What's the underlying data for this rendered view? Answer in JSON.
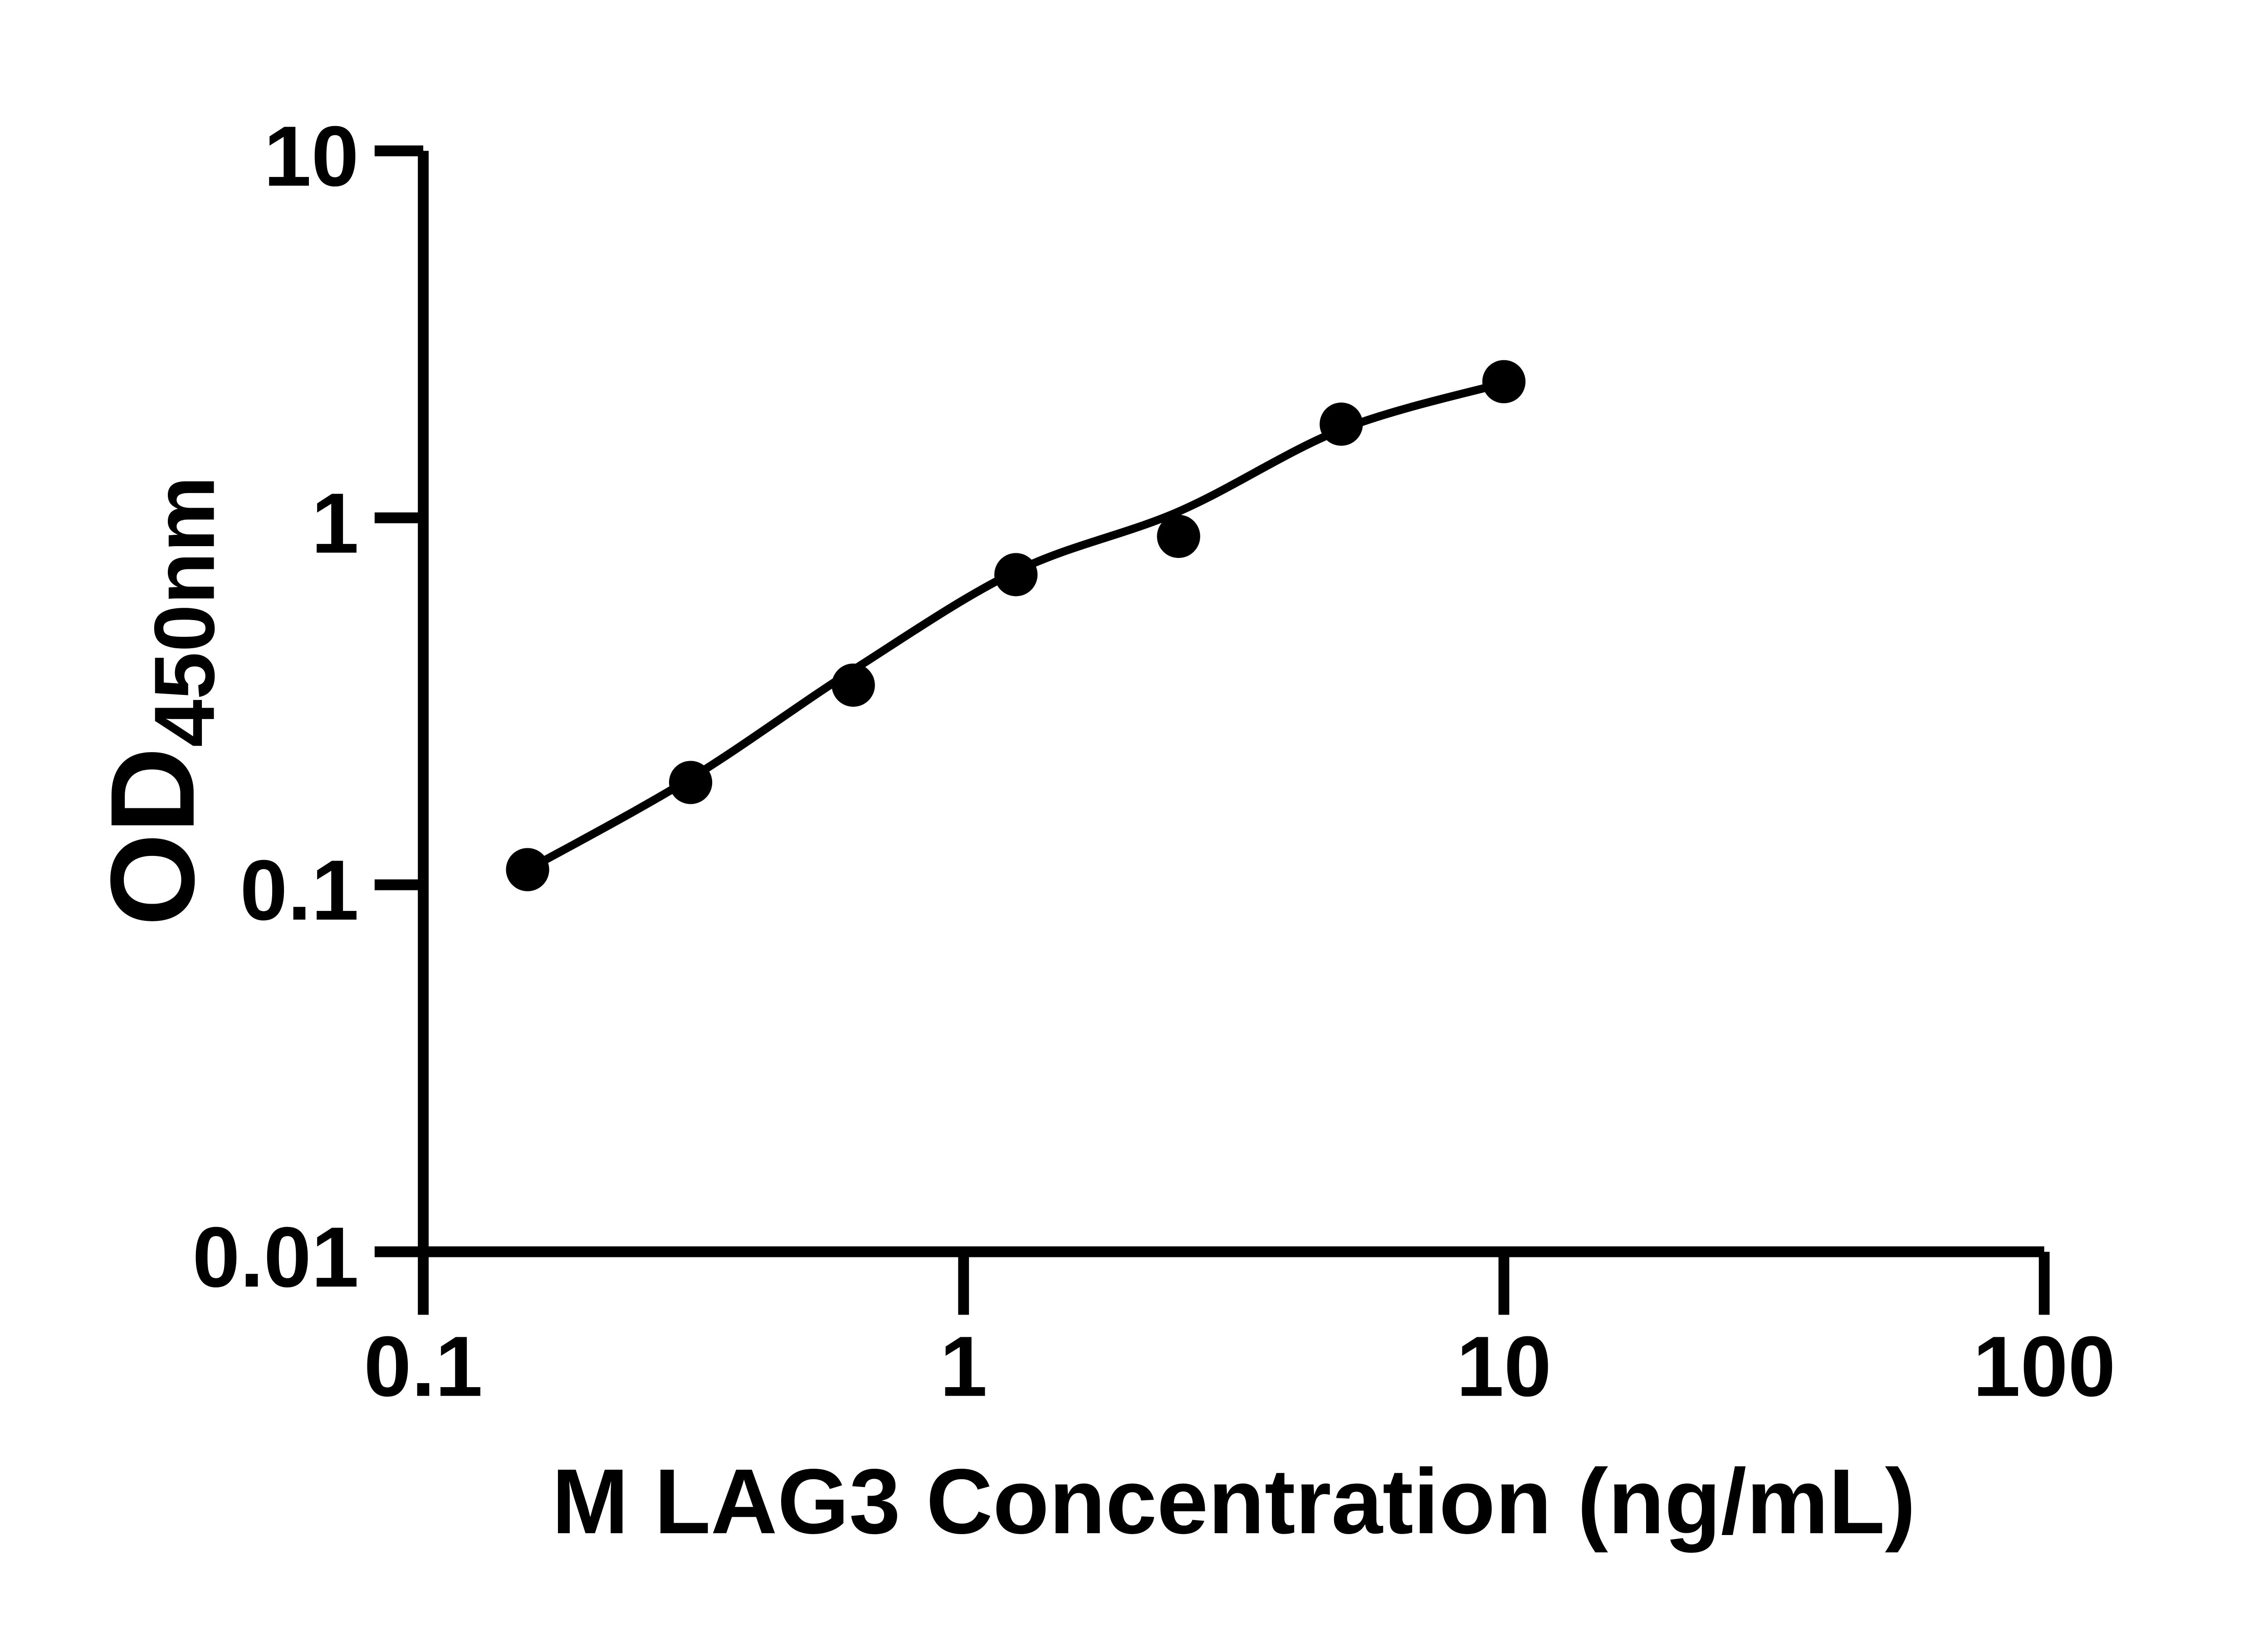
{
  "chart_data": {
    "type": "scatter",
    "title": "",
    "xlabel": "M LAG3 Concentration (ng/mL)",
    "ylabel_main": "OD",
    "ylabel_sub": "450nm",
    "x_scale": "log",
    "y_scale": "log",
    "xlim": [
      0.1,
      100
    ],
    "ylim": [
      0.01,
      10
    ],
    "grid": false,
    "legend": false,
    "x_ticks": {
      "values": [
        0.1,
        1,
        10,
        100
      ],
      "labels": [
        "0.1",
        "1",
        "10",
        "100"
      ]
    },
    "y_ticks": {
      "values": [
        10,
        1,
        0.1,
        0.01
      ],
      "labels": [
        "10",
        "1",
        "0.1",
        "0.01"
      ]
    },
    "series": [
      {
        "name": "standard-points",
        "type": "scatter",
        "marker": "circle",
        "color": "#000000",
        "x": [
          0.156,
          0.3125,
          0.625,
          1.25,
          2.5,
          5,
          10
        ],
        "y": [
          0.11,
          0.19,
          0.35,
          0.7,
          0.89,
          1.8,
          2.35
        ]
      },
      {
        "name": "fit-curve",
        "type": "line",
        "color": "#000000",
        "x": [
          0.156,
          0.3125,
          0.625,
          1.25,
          2.5,
          5,
          10
        ],
        "y": [
          0.11,
          0.195,
          0.385,
          0.715,
          1.04,
          1.74,
          2.33
        ]
      }
    ],
    "colors": {
      "points": "#000000",
      "curve": "#000000",
      "axis": "#000000",
      "background": "#ffffff"
    }
  }
}
